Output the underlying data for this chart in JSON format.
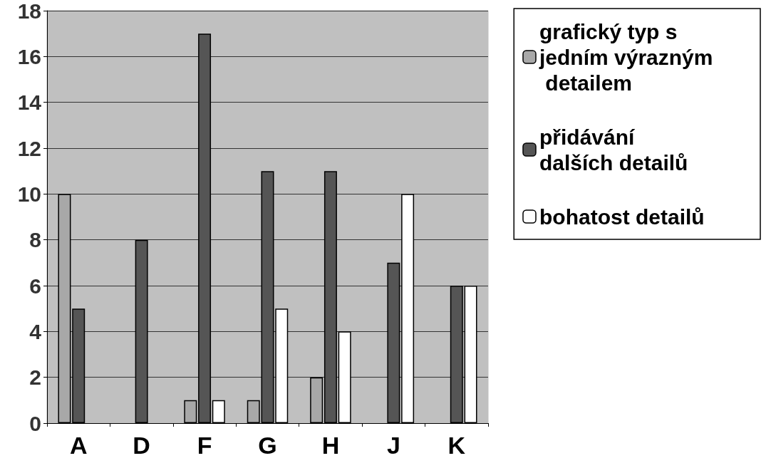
{
  "chart_data": {
    "type": "bar",
    "categories": [
      "A",
      "D",
      "F",
      "G",
      "H",
      "J",
      "K"
    ],
    "series": [
      {
        "name": "grafický typ s jedním výrazným detailem",
        "color": "#a8a8a8",
        "values": [
          10,
          0,
          1,
          1,
          2,
          0,
          0
        ]
      },
      {
        "name": "přidávání dalších detailů",
        "color": "#555555",
        "values": [
          5,
          8,
          17,
          11,
          11,
          7,
          6
        ]
      },
      {
        "name": "bohatost detailů",
        "color": "#ffffff",
        "values": [
          0,
          0,
          1,
          5,
          4,
          10,
          6
        ]
      }
    ],
    "ylim": [
      0,
      18
    ],
    "yticks": [
      0,
      2,
      4,
      6,
      8,
      10,
      12,
      14,
      16,
      18
    ],
    "grid": "y",
    "legend": "right"
  }
}
